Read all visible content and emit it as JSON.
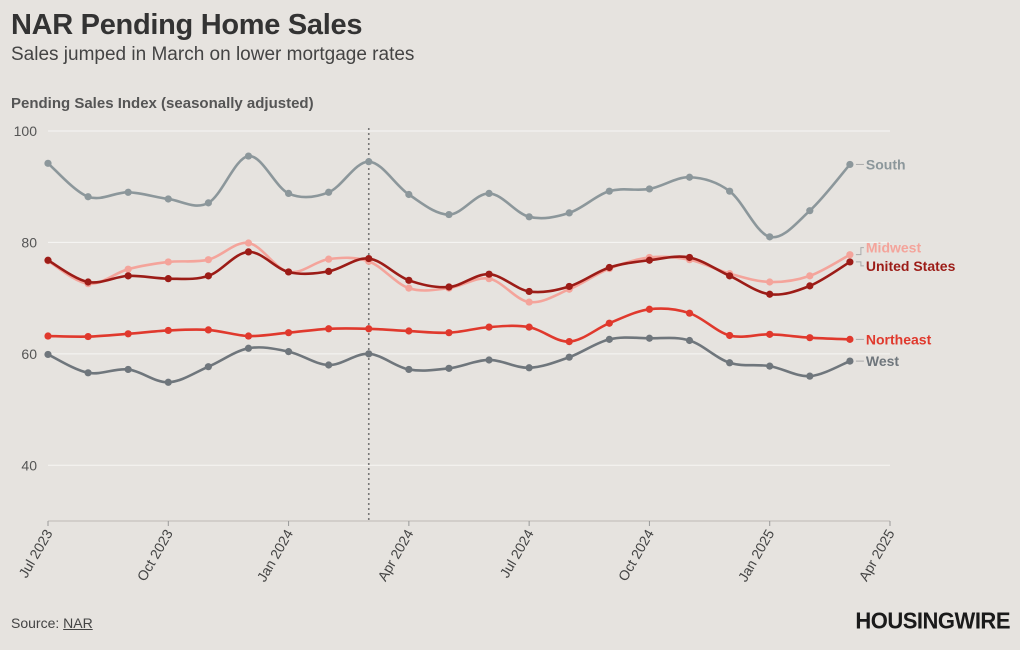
{
  "header": {
    "title": "NAR Pending Home Sales",
    "subtitle": "Sales jumped in March on lower mortgage rates",
    "axis_title": "Pending Sales Index (seasonally adjusted)"
  },
  "footer": {
    "source_prefix": "Source: ",
    "source_link": "NAR",
    "logo": "HOUSINGWIRE"
  },
  "chart_data": {
    "type": "line",
    "title": "NAR Pending Home Sales",
    "subtitle": "Sales jumped in March on lower mortgage rates",
    "ylabel": "Pending Sales Index (seasonally adjusted)",
    "xlabel": "",
    "ylim": [
      30,
      100
    ],
    "yticks": [
      40,
      60,
      80,
      100
    ],
    "grid": true,
    "x": [
      "2023-07",
      "2023-08",
      "2023-09",
      "2023-10",
      "2023-11",
      "2023-12",
      "2024-01",
      "2024-02",
      "2024-03",
      "2024-04",
      "2024-05",
      "2024-06",
      "2024-07",
      "2024-08",
      "2024-09",
      "2024-10",
      "2024-11",
      "2024-12",
      "2025-01",
      "2025-02",
      "2025-03"
    ],
    "xtick_labels": [
      "Jul 2023",
      "Oct 2023",
      "Jan 2024",
      "Apr 2024",
      "Jul 2024",
      "Oct 2024",
      "Jan 2025",
      "Apr 2025"
    ],
    "reference_line": "2024-03",
    "series": [
      {
        "name": "South",
        "color": "#8c979b",
        "values": [
          94.2,
          88.2,
          89.0,
          87.8,
          87.1,
          95.5,
          88.8,
          89.0,
          94.5,
          88.6,
          85.0,
          88.8,
          84.6,
          85.3,
          89.2,
          89.6,
          91.7,
          89.2,
          81.0,
          85.7,
          94.0
        ]
      },
      {
        "name": "Midwest",
        "color": "#f4a49b",
        "values": [
          76.7,
          72.6,
          75.2,
          76.5,
          76.9,
          79.9,
          74.7,
          77.0,
          76.6,
          71.8,
          71.8,
          73.5,
          69.3,
          71.6,
          75.3,
          77.3,
          76.9,
          74.4,
          72.9,
          74.0,
          77.8
        ]
      },
      {
        "name": "United States",
        "color": "#9c1c17",
        "values": [
          76.8,
          72.9,
          74.0,
          73.5,
          74.0,
          78.3,
          74.7,
          74.8,
          77.1,
          73.2,
          72.0,
          74.3,
          71.2,
          72.1,
          75.5,
          76.8,
          77.3,
          74.0,
          70.7,
          72.2,
          76.5
        ]
      },
      {
        "name": "Northeast",
        "color": "#e0392d",
        "values": [
          63.2,
          63.1,
          63.6,
          64.2,
          64.3,
          63.2,
          63.8,
          64.5,
          64.5,
          64.1,
          63.8,
          64.8,
          64.8,
          62.2,
          65.5,
          68.0,
          67.3,
          63.3,
          63.5,
          62.9,
          62.6
        ]
      },
      {
        "name": "West",
        "color": "#6f767c",
        "values": [
          59.9,
          56.6,
          57.2,
          54.9,
          57.7,
          61.0,
          60.4,
          58.0,
          60.0,
          57.2,
          57.4,
          58.9,
          57.5,
          59.4,
          62.6,
          62.8,
          62.4,
          58.4,
          57.8,
          56.0,
          58.7
        ]
      }
    ]
  }
}
